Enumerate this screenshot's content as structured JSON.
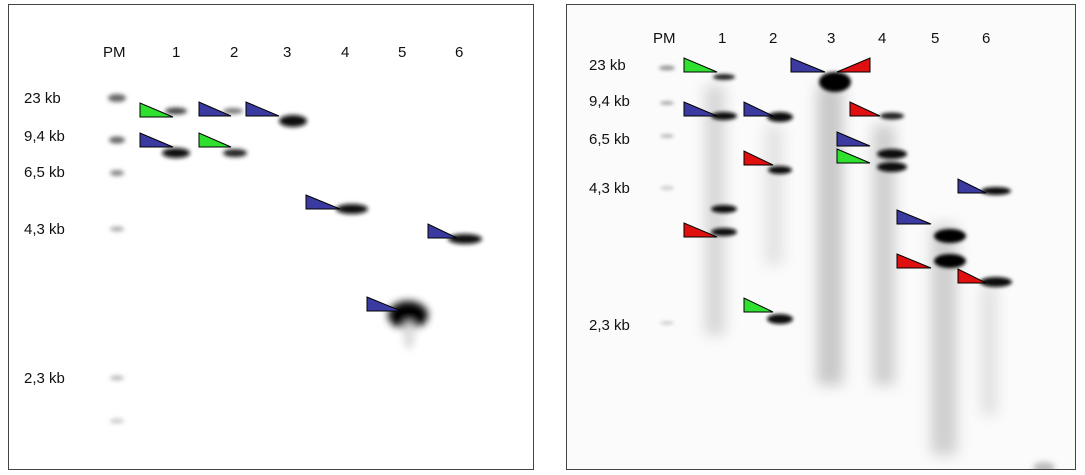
{
  "panels": [
    {
      "lane_labels": [
        "PM",
        "1",
        "2",
        "3",
        "4",
        "5",
        "6"
      ],
      "size_labels": [
        "23 kb",
        "9,4 kb",
        "6,5 kb",
        "4,3 kb",
        "2,3 kb"
      ]
    },
    {
      "lane_labels": [
        "PM",
        "1",
        "2",
        "3",
        "4",
        "5",
        "6"
      ],
      "size_labels": [
        "23 kb",
        "9,4 kb",
        "6,5 kb",
        "4,3 kb",
        "2,3 kb"
      ]
    }
  ],
  "colors": {
    "arrow_blue": "#3a3aa0",
    "arrow_green": "#2fe02f",
    "arrow_red": "#e01010",
    "band": "#111111",
    "background_a": "#ffffff",
    "background_b": "#fbfbfb"
  }
}
